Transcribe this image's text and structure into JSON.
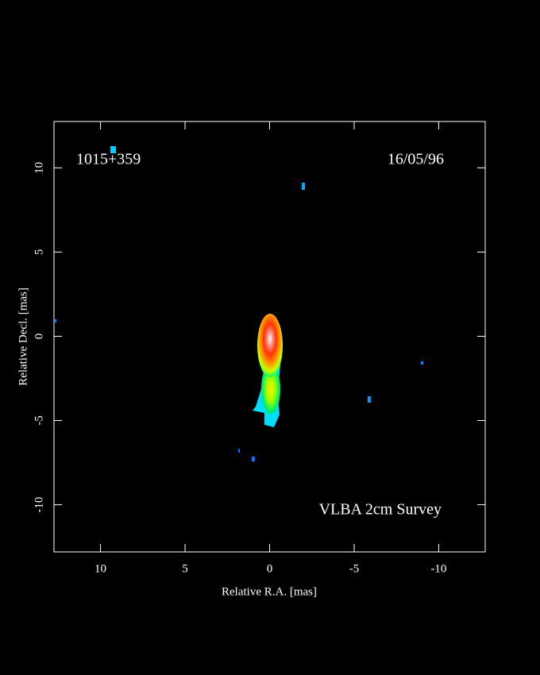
{
  "chart_data": {
    "type": "image",
    "labels": [
      "1015+359",
      "16/05/96",
      "VLBA 2cm Survey"
    ],
    "xlabel": "Relative R.A. [mas]",
    "ylabel": "Relative Decl. [mas]",
    "xlim": [
      12.75,
      -12.75
    ],
    "xticks": [
      10,
      5,
      0,
      -5,
      -10
    ],
    "ylim": [
      -12.8,
      12.75
    ],
    "yticks": [
      -10,
      -5,
      0,
      5,
      10
    ]
  }
}
